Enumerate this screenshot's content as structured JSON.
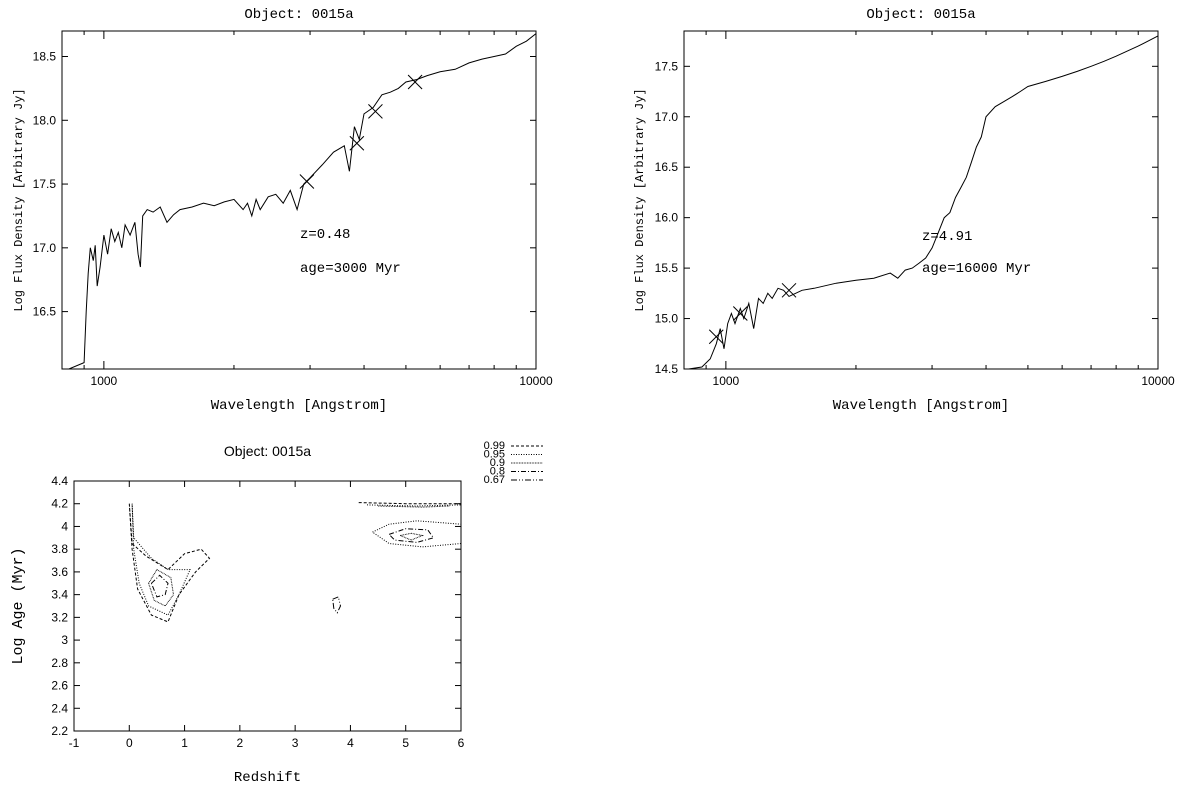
{
  "chart_data": [
    {
      "type": "line",
      "title": "Object: 0015a",
      "xlabel": "Wavelength [Angstrom]",
      "ylabel": "Log Flux Density [Arbitrary Jy]",
      "xscale": "log",
      "xlim": [
        800,
        10000
      ],
      "ylim": [
        16.05,
        18.7
      ],
      "xticks": [
        1000,
        10000
      ],
      "xtick_labels": [
        "1000",
        "10000"
      ],
      "yticks": [
        16.5,
        17.0,
        17.5,
        18.0,
        18.5
      ],
      "ytick_labels": [
        "16.5",
        "17.0",
        "17.5",
        "18.0",
        "18.5"
      ],
      "series": [
        {
          "x": [
            830,
            900,
            910,
            920,
            930,
            945,
            955,
            965,
            980,
            1000,
            1020,
            1040,
            1060,
            1080,
            1100,
            1120,
            1150,
            1180,
            1200,
            1215,
            1230,
            1260,
            1300,
            1350,
            1400,
            1450,
            1500,
            1600,
            1700,
            1800,
            1900,
            2000,
            2100,
            2150,
            2200,
            2250,
            2300,
            2400,
            2500,
            2600,
            2700,
            2800,
            2900,
            3000,
            3200,
            3400,
            3600,
            3700,
            3800,
            3900,
            4000,
            4200,
            4400,
            4600,
            4800,
            5000,
            5300,
            5600,
            6000,
            6500,
            7000,
            7500,
            8000,
            8500,
            9000,
            9500,
            10000
          ],
          "y": [
            16.05,
            16.1,
            16.5,
            16.8,
            17.0,
            16.9,
            17.02,
            16.7,
            16.85,
            17.1,
            16.95,
            17.15,
            17.05,
            17.12,
            17.0,
            17.18,
            17.1,
            17.2,
            16.95,
            16.85,
            17.25,
            17.3,
            17.28,
            17.32,
            17.2,
            17.26,
            17.3,
            17.32,
            17.35,
            17.33,
            17.36,
            17.38,
            17.3,
            17.35,
            17.25,
            17.38,
            17.3,
            17.4,
            17.42,
            17.35,
            17.45,
            17.3,
            17.5,
            17.55,
            17.65,
            17.75,
            17.8,
            17.6,
            17.95,
            17.85,
            18.05,
            18.1,
            18.2,
            18.22,
            18.25,
            18.3,
            18.32,
            18.35,
            18.38,
            18.4,
            18.45,
            18.48,
            18.5,
            18.52,
            18.58,
            18.62,
            18.68
          ]
        }
      ],
      "markers": {
        "shape": "x",
        "x": [
          2950,
          3850,
          4250,
          5250
        ],
        "y": [
          17.52,
          17.82,
          18.07,
          18.3
        ]
      },
      "annotations": [
        "z=0.48",
        "age=3000 Myr"
      ],
      "grid": false
    },
    {
      "type": "line",
      "title": "Object: 0015a",
      "xlabel": "Wavelength [Angstrom]",
      "ylabel": "Log Flux Density [Arbitrary Jy]",
      "xscale": "log",
      "xlim": [
        800,
        10000
      ],
      "ylim": [
        14.5,
        17.85
      ],
      "xticks": [
        1000,
        10000
      ],
      "xtick_labels": [
        "1000",
        "10000"
      ],
      "yticks": [
        14.5,
        15.0,
        15.5,
        16.0,
        16.5,
        17.0,
        17.5
      ],
      "ytick_labels": [
        "14.5",
        "15.0",
        "15.5",
        "16.0",
        "16.5",
        "17.0",
        "17.5"
      ],
      "series": [
        {
          "x": [
            820,
            880,
            920,
            950,
            970,
            990,
            1010,
            1030,
            1050,
            1080,
            1100,
            1130,
            1160,
            1190,
            1220,
            1250,
            1280,
            1320,
            1360,
            1400,
            1500,
            1600,
            1800,
            2000,
            2200,
            2400,
            2500,
            2600,
            2700,
            2800,
            2900,
            3000,
            3100,
            3200,
            3300,
            3400,
            3500,
            3600,
            3700,
            3800,
            3900,
            4000,
            4200,
            4400,
            4600,
            4800,
            5000,
            5500,
            6000,
            6500,
            7000,
            7500,
            8000,
            9000,
            10000
          ],
          "y": [
            14.5,
            14.52,
            14.6,
            14.75,
            14.9,
            14.7,
            14.95,
            15.05,
            14.95,
            15.1,
            15.0,
            15.15,
            14.9,
            15.2,
            15.15,
            15.25,
            15.2,
            15.3,
            15.28,
            15.22,
            15.28,
            15.3,
            15.35,
            15.38,
            15.4,
            15.45,
            15.4,
            15.48,
            15.5,
            15.55,
            15.6,
            15.7,
            15.85,
            16.0,
            16.05,
            16.2,
            16.3,
            16.4,
            16.55,
            16.7,
            16.8,
            17.0,
            17.1,
            17.15,
            17.2,
            17.25,
            17.3,
            17.35,
            17.4,
            17.45,
            17.5,
            17.55,
            17.6,
            17.7,
            17.8
          ]
        }
      ],
      "markers": {
        "shape": "x",
        "x": [
          950,
          1080,
          1400
        ],
        "y": [
          14.82,
          15.05,
          15.28
        ]
      },
      "annotations": [
        "z=4.91",
        "age=16000 Myr"
      ],
      "grid": false
    },
    {
      "type": "contour",
      "title": "Object: 0015a",
      "xlabel": "Redshift",
      "ylabel": "Log Age (Myr)",
      "xlim": [
        -1,
        6
      ],
      "ylim": [
        2.2,
        4.4
      ],
      "xticks": [
        -1,
        0,
        1,
        2,
        3,
        4,
        5,
        6
      ],
      "xtick_labels": [
        "-1",
        "0",
        "1",
        "2",
        "3",
        "4",
        "5",
        "6"
      ],
      "yticks": [
        2.2,
        2.4,
        2.6,
        2.8,
        3.0,
        3.2,
        3.4,
        3.6,
        3.8,
        4.0,
        4.2,
        4.4
      ],
      "ytick_labels": [
        "2.2",
        "2.4",
        "2.6",
        "2.8",
        "3",
        "3.2",
        "3.4",
        "3.6",
        "3.8",
        "4",
        "4.2",
        "4.4"
      ],
      "legend": {
        "placement": "top-right outside",
        "entries": [
          {
            "label": "0.99",
            "dash": "3,2"
          },
          {
            "label": "0.95",
            "dash": "1,1.5"
          },
          {
            "label": "0.9",
            "dash": "0.8,0.8"
          },
          {
            "label": "0.8",
            "dash": "5,2,1,2"
          },
          {
            "label": "0.67",
            "dash": "6,2,1,2,1,2"
          }
        ]
      },
      "contours": [
        {
          "level": "0.99",
          "points": [
            [
              0.0,
              4.2
            ],
            [
              0.05,
              3.85
            ],
            [
              0.3,
              3.74
            ],
            [
              0.7,
              3.62
            ],
            [
              1.0,
              3.76
            ],
            [
              1.3,
              3.8
            ],
            [
              1.45,
              3.72
            ],
            [
              1.2,
              3.6
            ],
            [
              0.9,
              3.4
            ],
            [
              0.7,
              3.16
            ],
            [
              0.4,
              3.22
            ],
            [
              0.15,
              3.45
            ],
            [
              0.05,
              3.8
            ],
            [
              0.0,
              4.2
            ]
          ]
        },
        {
          "level": "0.95",
          "points": [
            [
              0.05,
              4.2
            ],
            [
              0.08,
              3.9
            ],
            [
              0.4,
              3.72
            ],
            [
              0.7,
              3.62
            ],
            [
              1.1,
              3.62
            ],
            [
              0.9,
              3.4
            ],
            [
              0.7,
              3.22
            ],
            [
              0.35,
              3.3
            ],
            [
              0.18,
              3.5
            ],
            [
              0.08,
              3.8
            ],
            [
              0.05,
              4.2
            ]
          ]
        },
        {
          "level": "0.9",
          "points": [
            [
              0.35,
              3.5
            ],
            [
              0.5,
              3.62
            ],
            [
              0.75,
              3.55
            ],
            [
              0.8,
              3.4
            ],
            [
              0.65,
              3.3
            ],
            [
              0.45,
              3.35
            ],
            [
              0.35,
              3.5
            ]
          ]
        },
        {
          "level": "0.8",
          "points": [
            [
              0.4,
              3.5
            ],
            [
              0.55,
              3.57
            ],
            [
              0.7,
              3.5
            ],
            [
              0.65,
              3.4
            ],
            [
              0.5,
              3.38
            ],
            [
              0.4,
              3.5
            ]
          ]
        },
        {
          "level": "0.67",
          "points": [
            [
              3.68,
              3.36
            ],
            [
              3.78,
              3.38
            ],
            [
              3.82,
              3.3
            ],
            [
              3.76,
              3.24
            ],
            [
              3.7,
              3.28
            ],
            [
              3.68,
              3.36
            ]
          ]
        },
        {
          "level": "0.99",
          "points": [
            [
              4.15,
              4.21
            ],
            [
              5.0,
              4.2
            ],
            [
              6.0,
              4.2
            ]
          ]
        },
        {
          "level": "0.95",
          "points": [
            [
              4.3,
              4.19
            ],
            [
              5.2,
              4.18
            ],
            [
              6.0,
              4.19
            ]
          ]
        },
        {
          "level": "0.9",
          "points": [
            [
              4.5,
              4.18
            ],
            [
              5.3,
              4.17
            ],
            [
              5.8,
              4.18
            ]
          ]
        },
        {
          "level": "0.95",
          "points": [
            [
              4.4,
              3.95
            ],
            [
              4.7,
              4.02
            ],
            [
              5.2,
              4.05
            ],
            [
              6.0,
              4.02
            ],
            [
              6.0,
              3.85
            ],
            [
              5.3,
              3.82
            ],
            [
              4.7,
              3.85
            ],
            [
              4.4,
              3.95
            ]
          ]
        },
        {
          "level": "0.8",
          "points": [
            [
              4.7,
              3.93
            ],
            [
              5.0,
              3.98
            ],
            [
              5.4,
              3.97
            ],
            [
              5.5,
              3.9
            ],
            [
              5.2,
              3.86
            ],
            [
              4.8,
              3.88
            ],
            [
              4.7,
              3.93
            ]
          ]
        },
        {
          "level": "0.9",
          "points": [
            [
              4.9,
              3.92
            ],
            [
              5.1,
              3.94
            ],
            [
              5.3,
              3.92
            ],
            [
              5.1,
              3.88
            ],
            [
              4.9,
              3.92
            ]
          ]
        }
      ],
      "grid": false
    }
  ]
}
